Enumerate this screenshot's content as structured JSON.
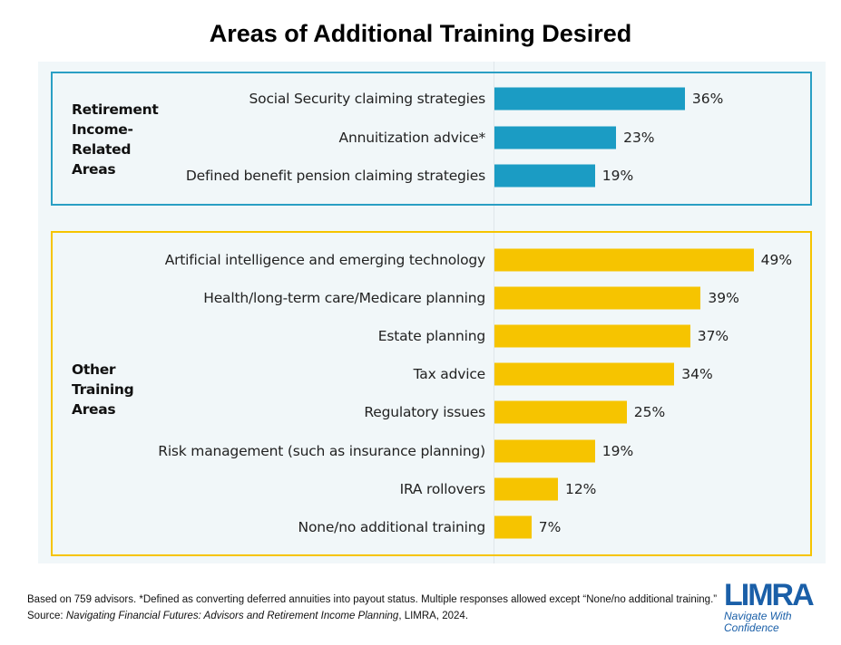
{
  "chart_data": {
    "type": "bar",
    "orientation": "horizontal",
    "title": "Areas of Additional Training Desired",
    "unit": "%",
    "xlim": [
      0,
      50
    ],
    "grid": false,
    "groups": [
      {
        "label": "Retirement Income-Related Areas",
        "label_lines": [
          "Retirement",
          "Income-",
          "Related",
          "Areas"
        ],
        "color": "#1b9cc4",
        "categories": [
          "Social Security claiming strategies",
          "Annuitization advice*",
          "Defined benefit pension claiming strategies"
        ],
        "values": [
          36,
          23,
          19
        ],
        "value_labels": [
          "36%",
          "23%",
          "19%"
        ]
      },
      {
        "label": "Other Training Areas",
        "label_lines": [
          "Other",
          "Training",
          "Areas"
        ],
        "color": "#f6c400",
        "categories": [
          "Artificial intelligence and emerging technology",
          "Health/long-term care/Medicare planning",
          "Estate planning",
          "Tax advice",
          "Regulatory issues",
          "Risk management (such as insurance planning)",
          "IRA rollovers",
          "None/no additional training"
        ],
        "values": [
          49,
          39,
          37,
          34,
          25,
          19,
          12,
          7
        ],
        "value_labels": [
          "49%",
          "39%",
          "37%",
          "34%",
          "25%",
          "19%",
          "12%",
          "7%"
        ]
      }
    ]
  },
  "footnote": {
    "line1": "Based on 759 advisors.  *Defined as converting deferred annuities into payout status. Multiple responses allowed except “None/no additional training.”",
    "source_prefix": "Source: ",
    "source_title": "Navigating Financial Futures: Advisors and Retirement Income Planning",
    "source_suffix": ", LIMRA, 2024."
  },
  "logo": {
    "wordmark": "LIMRA",
    "tagline_1": "Navigate With",
    "tagline_2": "Confidence"
  },
  "colors": {
    "box_blue": "#2a9fc4",
    "box_yellow": "#f6c400",
    "panel": "#f1f7f9"
  }
}
